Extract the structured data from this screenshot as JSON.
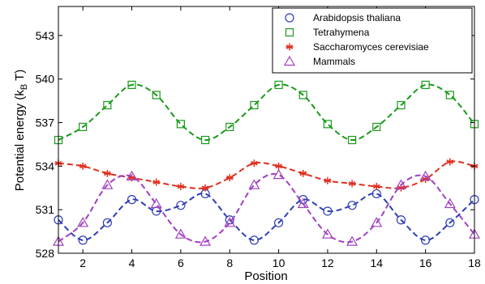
{
  "chart_data": {
    "type": "line",
    "xlabel": "Position",
    "ylabel": "Potential energy (k",
    "ylabel_sub": "B",
    "ylabel_suffix": " T)",
    "xlim": [
      1,
      18
    ],
    "ylim": [
      528,
      545
    ],
    "xticks": [
      2,
      4,
      6,
      8,
      10,
      12,
      14,
      16,
      18
    ],
    "yticks": [
      528,
      531,
      534,
      537,
      540,
      543
    ],
    "grid": false,
    "legend_position": "top-right",
    "x": [
      1,
      2,
      3,
      4,
      5,
      6,
      7,
      8,
      9,
      10,
      11,
      12,
      13,
      14,
      15,
      16,
      17,
      18
    ],
    "series": [
      {
        "name": "Arabidopsis thaliana",
        "marker": "circle",
        "color": "#2f3eb5",
        "values": [
          530.3,
          528.9,
          530.1,
          531.7,
          530.9,
          531.3,
          532.1,
          530.3,
          528.9,
          530.1,
          531.7,
          530.9,
          531.3,
          532.1,
          530.3,
          528.9,
          530.1,
          531.7
        ]
      },
      {
        "name": "Tetrahymena",
        "marker": "square",
        "color": "#1a9a1a",
        "values": [
          535.8,
          536.7,
          538.2,
          539.6,
          538.9,
          536.9,
          535.8,
          536.7,
          538.2,
          539.6,
          538.9,
          536.9,
          535.8,
          536.7,
          538.2,
          539.6,
          538.9,
          536.9
        ]
      },
      {
        "name": "Saccharomyces cerevisiae",
        "marker": "asterisk",
        "color": "#e03020",
        "values": [
          534.2,
          534.0,
          533.5,
          533.2,
          532.9,
          532.6,
          532.5,
          533.2,
          534.2,
          534.0,
          533.5,
          533.0,
          532.8,
          532.6,
          532.5,
          533.1,
          534.3,
          534.0
        ]
      },
      {
        "name": "Mammals",
        "marker": "triangle",
        "color": "#a040c0",
        "values": [
          528.8,
          530.1,
          532.7,
          533.3,
          531.4,
          529.3,
          528.8,
          530.1,
          532.7,
          533.4,
          531.4,
          529.3,
          528.8,
          530.1,
          532.7,
          533.3,
          531.4,
          529.3
        ]
      }
    ]
  }
}
